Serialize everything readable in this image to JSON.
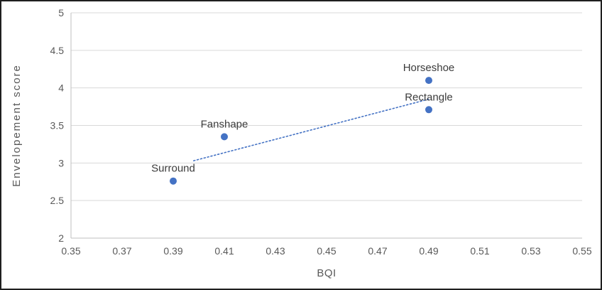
{
  "figure": {
    "background": "#ffffff",
    "border_color": "#1f1f1f"
  },
  "chart_data": {
    "type": "scatter",
    "title": "",
    "xlabel": "BQI",
    "ylabel": "Envelopement score",
    "xlim": [
      0.35,
      0.55
    ],
    "ylim": [
      2,
      5
    ],
    "xticks": [
      0.35,
      0.37,
      0.39,
      0.41,
      0.43,
      0.45,
      0.47,
      0.49,
      0.51,
      0.53,
      0.55
    ],
    "xtick_labels": [
      "0.35",
      "0.37",
      "0.39",
      "0.41",
      "0.43",
      "0.45",
      "0.47",
      "0.49",
      "0.51",
      "0.53",
      "0.55"
    ],
    "yticks": [
      2,
      2.5,
      3,
      3.5,
      4,
      4.5,
      5
    ],
    "ytick_labels": [
      "2",
      "2.5",
      "3",
      "3.5",
      "4",
      "4.5",
      "5"
    ],
    "grid": "horizontal",
    "legend": "none",
    "points": [
      {
        "label": "Surround",
        "x": 0.39,
        "y": 2.76
      },
      {
        "label": "Fanshape",
        "x": 0.41,
        "y": 3.35
      },
      {
        "label": "Horseshoe",
        "x": 0.49,
        "y": 4.1
      },
      {
        "label": "Rectangle",
        "x": 0.49,
        "y": 3.71
      }
    ],
    "trendline": {
      "style": "dotted",
      "x1": 0.398,
      "y1": 3.03,
      "x2": 0.49,
      "y2": 3.85
    },
    "marker_color": "#4472c4",
    "trendline_color": "#4472c4",
    "grid_color": "#d9d9d9",
    "axis_color": "#bfbfbf",
    "tick_label_color": "#595959",
    "point_label_color": "#3b3b3b"
  }
}
